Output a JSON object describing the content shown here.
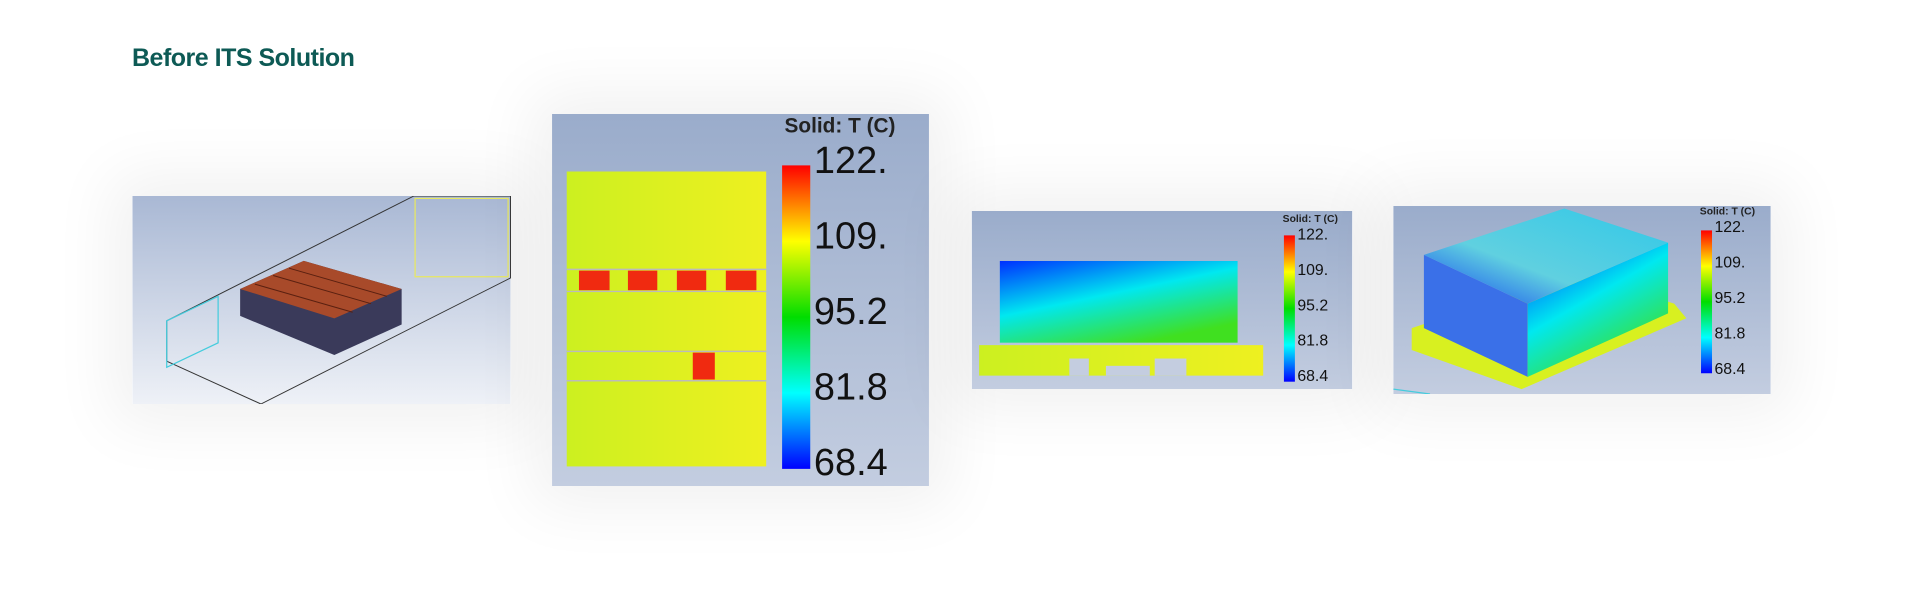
{
  "header": {
    "title": "Before ITS Solution"
  },
  "images": [
    {
      "name": "model-geometry"
    },
    {
      "name": "top-view",
      "legend": {
        "title": "Solid: T (C)",
        "labels": [
          "122.",
          "109.",
          "95.2",
          "81.8",
          "68.4"
        ]
      }
    },
    {
      "name": "side-view",
      "legend": {
        "title": "Solid: T (C)",
        "labels": [
          "122.",
          "109.",
          "95.2",
          "81.8",
          "68.4"
        ]
      }
    },
    {
      "name": "iso-view",
      "legend": {
        "title": "Solid: T (C)",
        "labels": [
          "122.",
          "109.",
          "95.2",
          "81.8",
          "68.4"
        ]
      }
    }
  ]
}
